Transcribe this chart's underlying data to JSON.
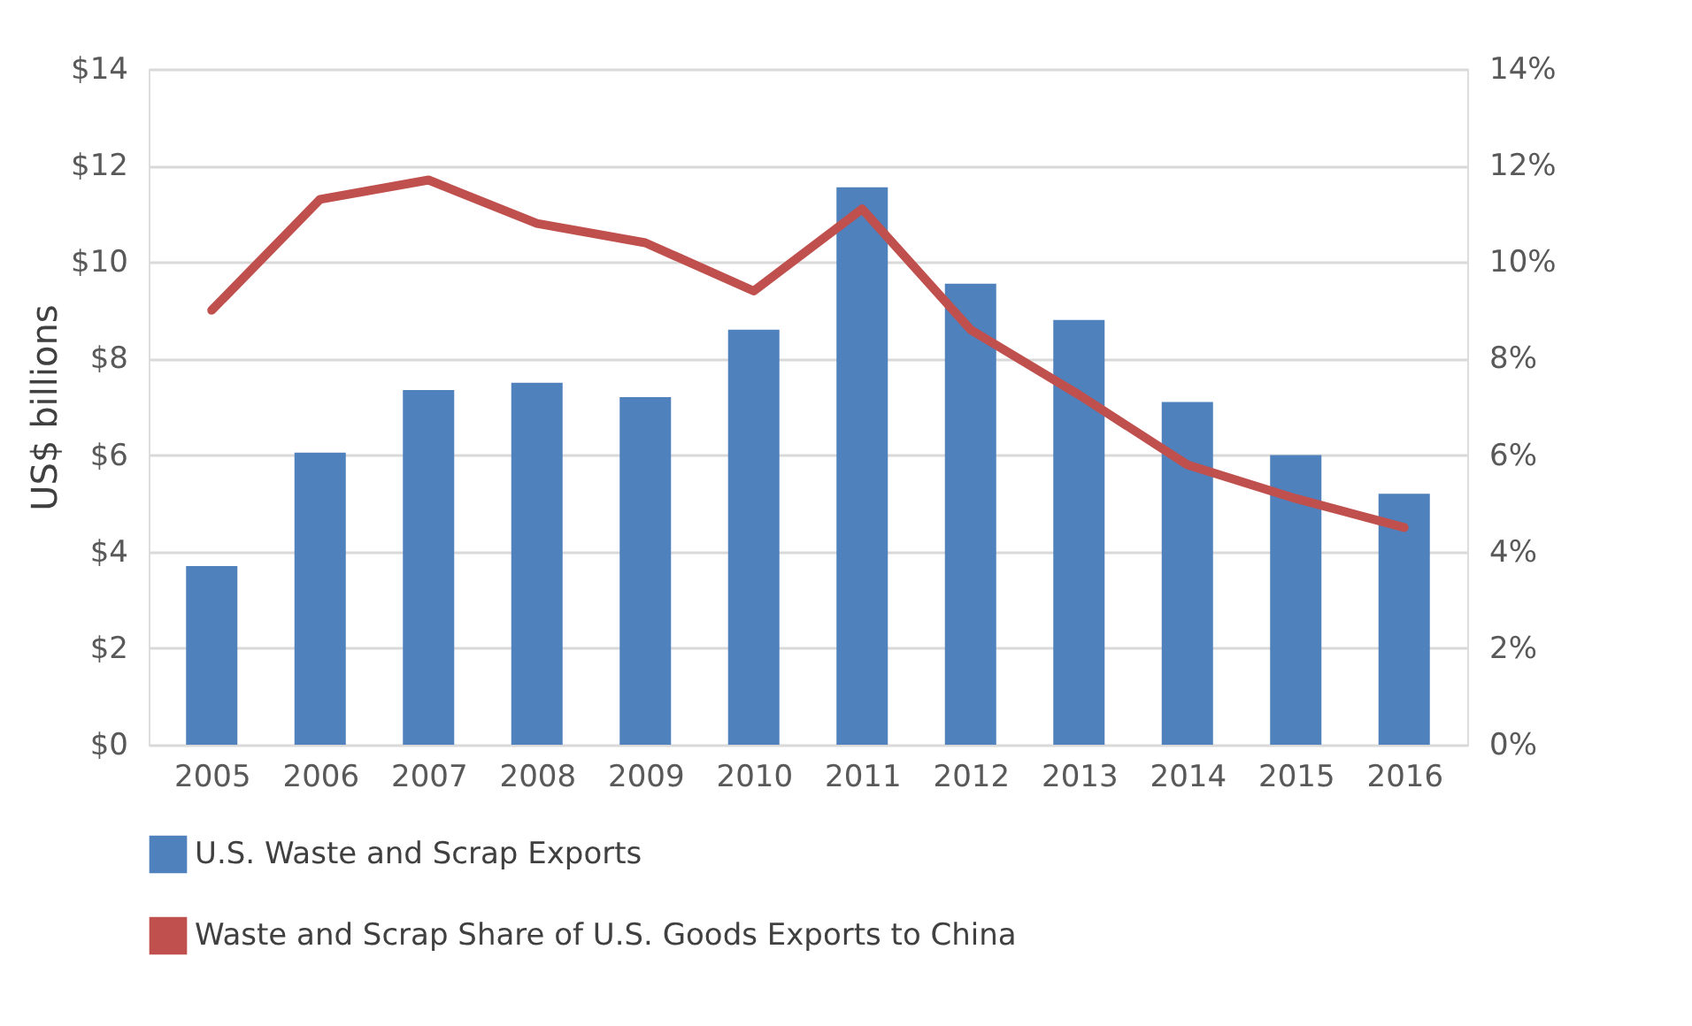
{
  "chart_data": {
    "type": "bar",
    "ylabel": "US$ billions",
    "categories": [
      "2005",
      "2006",
      "2007",
      "2008",
      "2009",
      "2010",
      "2011",
      "2012",
      "2013",
      "2014",
      "2015",
      "2016"
    ],
    "series": [
      {
        "name": "U.S. Waste and Scrap Exports",
        "color": "#4f81bd",
        "values": [
          3.7,
          6.05,
          7.35,
          7.5,
          7.2,
          8.6,
          11.55,
          9.55,
          8.8,
          7.1,
          6.0,
          5.2
        ]
      },
      {
        "name": "Waste and Scrap Share of U.S. Goods Exports to China",
        "type": "line",
        "axis": "y2",
        "color": "#c0504d",
        "values": [
          9.0,
          11.3,
          11.7,
          10.8,
          10.4,
          9.4,
          11.1,
          8.6,
          7.25,
          5.8,
          5.1,
          4.5
        ]
      }
    ],
    "ylim": [
      0,
      14
    ],
    "yticks": [
      {
        "value": 0,
        "label": "$0"
      },
      {
        "value": 2,
        "label": "$2"
      },
      {
        "value": 4,
        "label": "$4"
      },
      {
        "value": 6,
        "label": "$6"
      },
      {
        "value": 8,
        "label": "$8"
      },
      {
        "value": 10,
        "label": "$10"
      },
      {
        "value": 12,
        "label": "$12"
      },
      {
        "value": 14,
        "label": "$14"
      }
    ],
    "y2lim": [
      0,
      14
    ],
    "y2ticks": [
      {
        "value": 0,
        "label": "0%"
      },
      {
        "value": 2,
        "label": "2%"
      },
      {
        "value": 4,
        "label": "4%"
      },
      {
        "value": 6,
        "label": "6%"
      },
      {
        "value": 8,
        "label": "8%"
      },
      {
        "value": 10,
        "label": "10%"
      },
      {
        "value": 12,
        "label": "12%"
      },
      {
        "value": 14,
        "label": "14%"
      }
    ],
    "grid": "y",
    "legend": "bottom left"
  }
}
